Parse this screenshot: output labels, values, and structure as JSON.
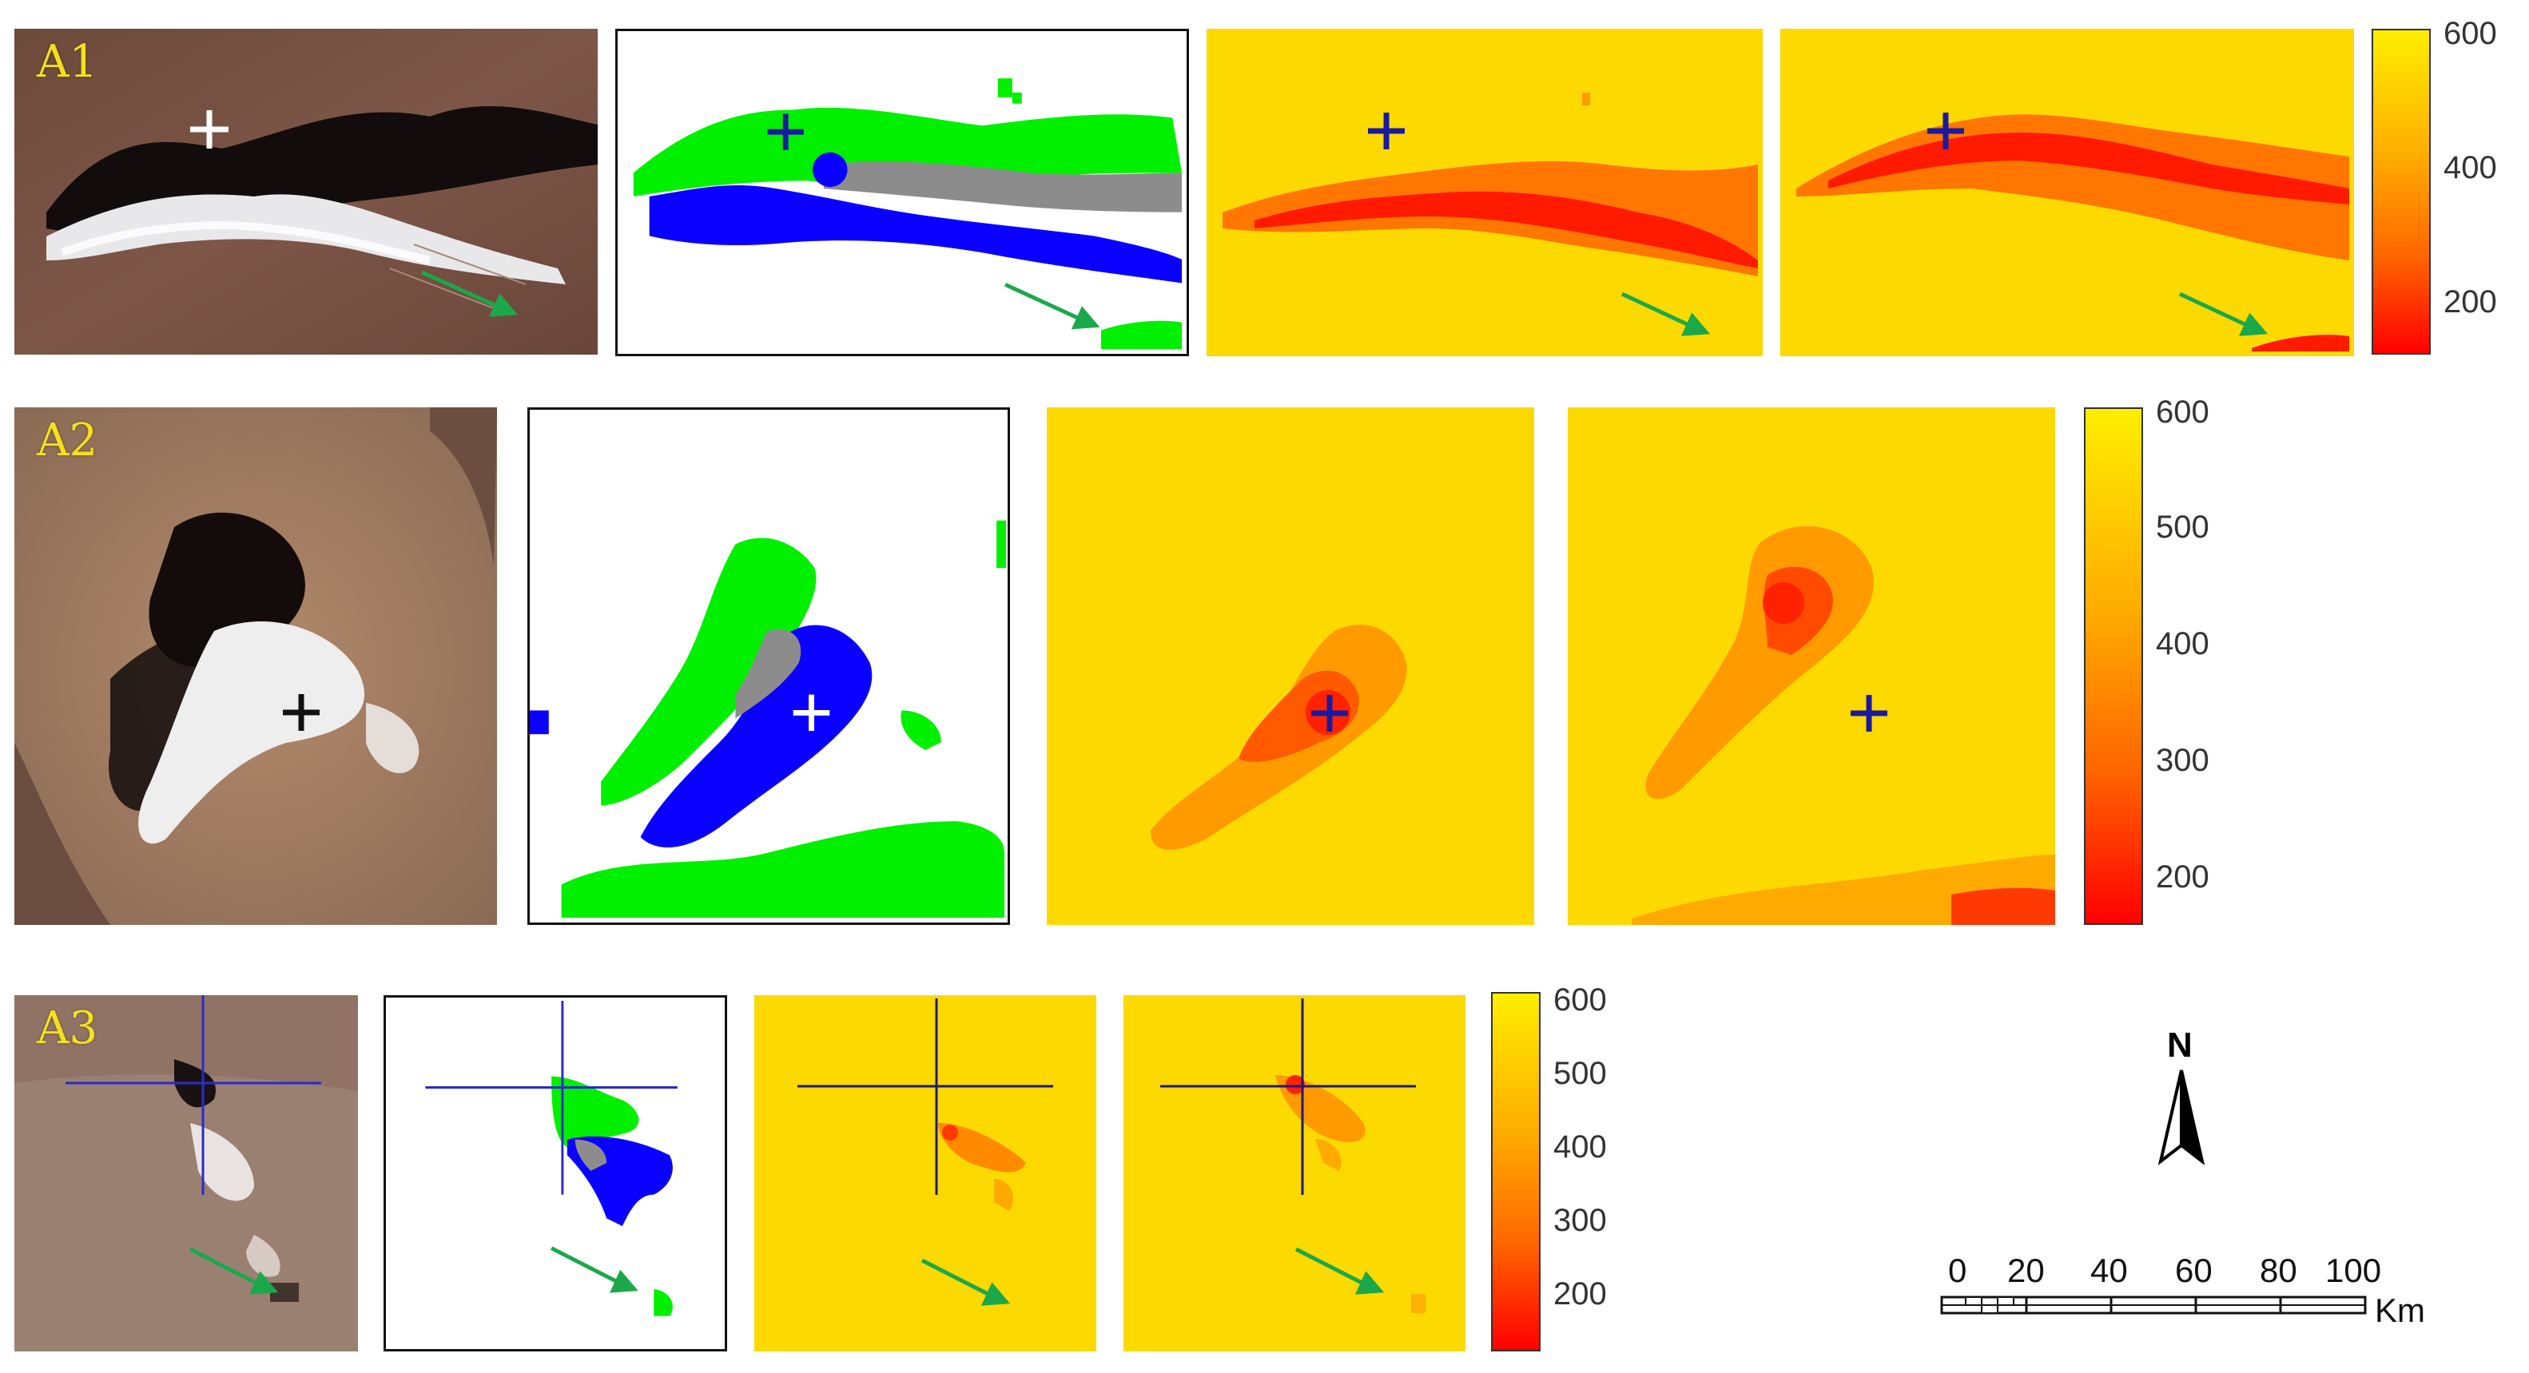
{
  "rows": [
    {
      "label": "A1",
      "colorbar_ticks": [
        "600",
        "400",
        "200"
      ]
    },
    {
      "label": "A2",
      "colorbar_ticks": [
        "600",
        "500",
        "400",
        "300",
        "200"
      ]
    },
    {
      "label": "A3",
      "colorbar_ticks": [
        "600",
        "500",
        "400",
        "300",
        "200"
      ]
    }
  ],
  "colors": {
    "cloud_green": "#00f000",
    "shadow_blue": "#0a00ff",
    "overlap_gray": "#8c8c8c",
    "colorbar_low": "#ff0000",
    "colorbar_high": "#ffee00",
    "panel_yellow": "#fcd900",
    "arrow_green": "#1aa84a",
    "label_yellow": "#f4e11a"
  },
  "legend": {
    "north_label": "N",
    "scale_ticks": [
      "0",
      "20",
      "40",
      "60",
      "80",
      "100"
    ],
    "scale_mid_tick": "20",
    "scale_unit": "Km"
  }
}
